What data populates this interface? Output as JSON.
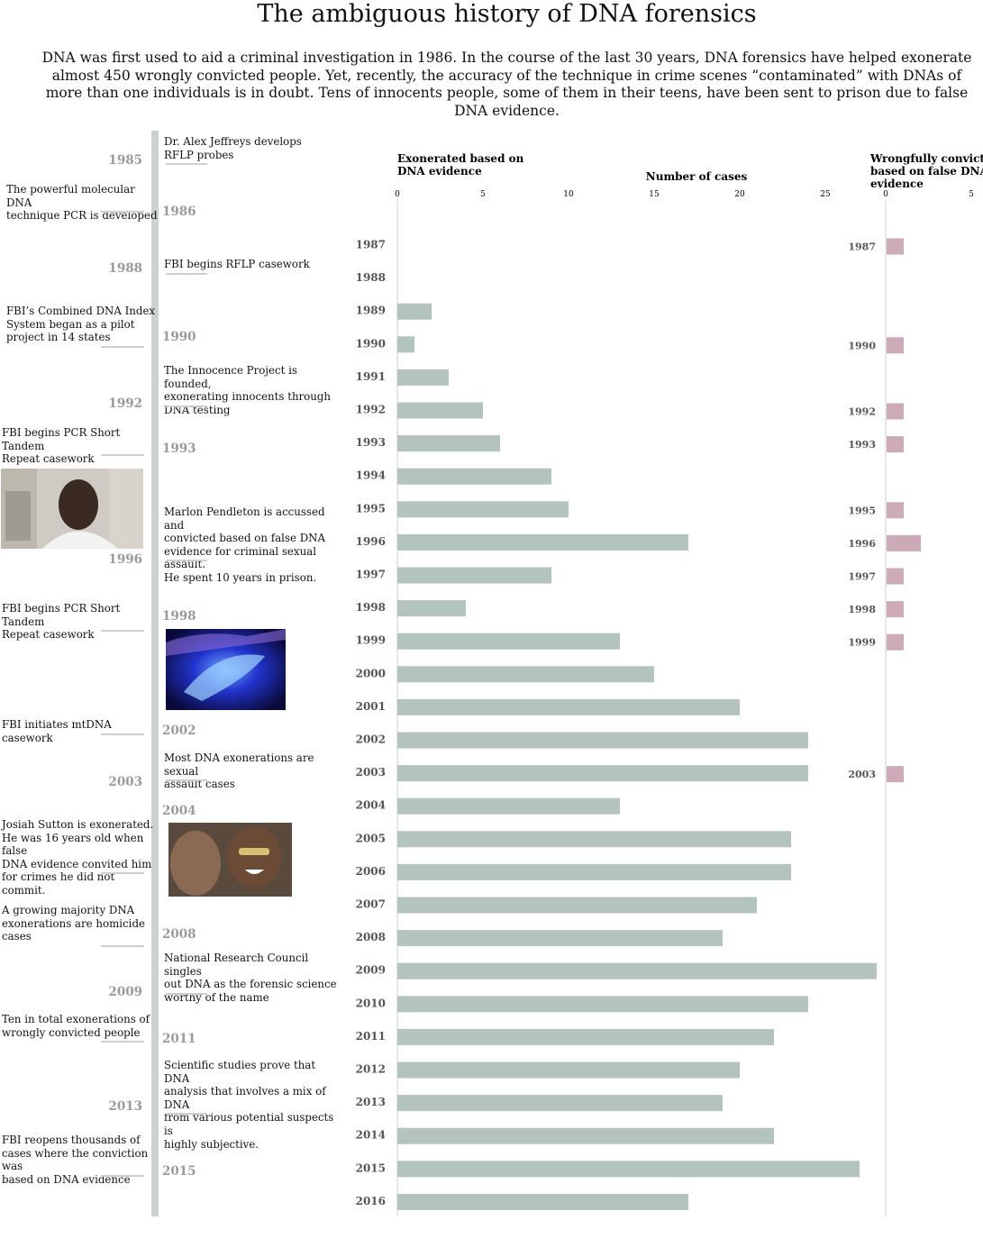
{
  "title": "The ambiguous history of DNA forensics",
  "intro": "DNA was first used to aid a criminal investigation in 1986. In the course of the last 30 years, DNA forensics have helped exonerate almost 450 wrongly convicted people. Yet, recently, the accuracy of the technique in crime scenes “contaminated” with DNAs of more than one individuals is in doubt. Tens of innocents people, some of them in their teens, have been sent to prison due to false DNA evidence.",
  "timeline": [
    {
      "year": "1985",
      "side": "right",
      "text": "Dr. Alex Jeffreys develops\nRFLP probes"
    },
    {
      "year": "1986",
      "side": "left",
      "text": "The powerful molecular DNA\ntechnique PCR is developed"
    },
    {
      "year": "1988",
      "side": "right",
      "text": "FBI begins RFLP casework"
    },
    {
      "year": "1990",
      "side": "left",
      "text": "FBI’s Combined DNA Index\nSystem began as a pilot\nproject in 14 states"
    },
    {
      "year": "1992",
      "side": "right",
      "text": "The Innocence Project is founded,\nexonerating innocents through\nDNA testing"
    },
    {
      "year": "1993",
      "side": "left",
      "text": "FBI begins PCR Short Tandem\nRepeat casework"
    },
    {
      "year": "1996",
      "side": "right",
      "text": "Marlon Pendleton is accussed and\nconvicted based on false DNA\nevidence for criminal sexual assault.\nHe spent 10 years in prison."
    },
    {
      "year": "1998",
      "side": "left",
      "text": "FBI begins PCR Short Tandem\nRepeat casework"
    },
    {
      "year": "2002",
      "side": "left",
      "text": "FBI initiates mtDNA casework"
    },
    {
      "year": "2003",
      "side": "right",
      "text": "Most DNA exonerations are sexual\nassault cases"
    },
    {
      "year": "2004",
      "side": "left",
      "text": "Josiah Sutton is exonerated.\nHe was 16 years old when false\nDNA evidence convited him\nfor crimes he did not commit."
    },
    {
      "year": "2008",
      "side": "left",
      "text": "A growing majority DNA\nexonerations are homicide\ncases"
    },
    {
      "year": "2009",
      "side": "right",
      "text": "National Research Council singles\nout DNA as the forensic science\nworthy of the name"
    },
    {
      "year": "2011",
      "side": "left",
      "text": "Ten in total exonerations of\nwrongly convicted people"
    },
    {
      "year": "2013",
      "side": "right",
      "text": "Scientific studies prove that DNA\nanalysis that involves a mix of DNA\n from various potential suspects is\nhighly subjective."
    },
    {
      "year": "2015",
      "side": "left",
      "text": "FBI reopens thousands of\ncases where the conviction was\nbased on DNA evidence"
    }
  ],
  "colors": {
    "exonerated_bar": "#b2c4bb",
    "wrongful_bar": "#cdaab8",
    "spine": "#ccd3cd",
    "year_label": "#9a9a9a"
  },
  "chart_data": [
    {
      "type": "bar",
      "orientation": "horizontal",
      "title": "Exonerated based on DNA  evidence",
      "xlabel": "Number of cases",
      "xlim": [
        0,
        28
      ],
      "xticks": [
        0,
        5,
        10,
        15,
        20,
        25
      ],
      "categories": [
        "1987",
        "1988",
        "1989",
        "1990",
        "1991",
        "1992",
        "1993",
        "1994",
        "1995",
        "1996",
        "1997",
        "1998",
        "1999",
        "2000",
        "2001",
        "2002",
        "2003",
        "2004",
        "2005",
        "2006",
        "2007",
        "2008",
        "2009",
        "2010",
        "2011",
        "2012",
        "2013",
        "2014",
        "2015",
        "2016"
      ],
      "values": [
        0,
        0,
        2,
        1,
        3,
        5,
        6,
        9,
        10,
        17,
        9,
        4,
        13,
        15,
        20,
        24,
        24,
        13,
        23,
        23,
        21,
        19,
        28,
        24,
        22,
        20,
        19,
        22,
        27,
        17
      ]
    },
    {
      "type": "bar",
      "orientation": "horizontal",
      "title": "Wrongfully convicted based on false DNA evidence",
      "xlim": [
        0,
        5
      ],
      "xticks": [
        0,
        5
      ],
      "categories": [
        "1987",
        "1990",
        "1992",
        "1993",
        "1995",
        "1996",
        "1997",
        "1998",
        "1999",
        "2003"
      ],
      "values": [
        1,
        1,
        1,
        1,
        1,
        2,
        1,
        1,
        1,
        1
      ]
    }
  ]
}
